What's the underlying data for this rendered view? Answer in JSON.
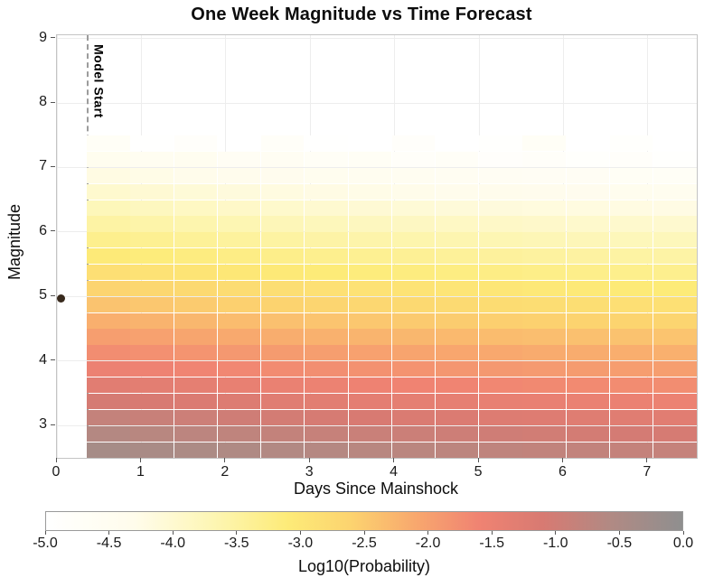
{
  "figure": {
    "title": "One Week Magnitude vs Time Forecast",
    "xlabel": "Days Since Mainshock",
    "ylabel": "Magnitude",
    "model_start_label": "Model Start",
    "colorbar_label": "Log10(Probability)"
  },
  "chart_data": {
    "type": "heatmap",
    "title": "One Week Magnitude vs Time Forecast",
    "xlabel": "Days Since Mainshock",
    "ylabel": "Magnitude",
    "x_range": [
      0,
      7.58
    ],
    "y_range": [
      2.5,
      9.05
    ],
    "x_ticks": [
      0,
      1,
      2,
      3,
      4,
      5,
      6,
      7
    ],
    "x_tick_labels": [
      "0",
      "1",
      "2",
      "3",
      "4",
      "5",
      "6",
      "7"
    ],
    "y_ticks": [
      3,
      4,
      5,
      6,
      7,
      8,
      9
    ],
    "y_tick_labels": [
      "3",
      "4",
      "5",
      "6",
      "7",
      "8",
      "9"
    ],
    "grid": true,
    "model_start_day": 0.35,
    "mainshock_point": {
      "day": 0.05,
      "magnitude": 4.97,
      "color": "#38291c"
    },
    "t_bins": {
      "start": 0.35,
      "end": 7.58,
      "count": 14
    },
    "mag_bins": {
      "start": 2.5,
      "step": 0.25,
      "count": 20
    },
    "col_day_centers": [
      0.61,
      1.12,
      1.64,
      2.16,
      2.67,
      3.19,
      3.71,
      4.23,
      4.74,
      5.26,
      5.78,
      6.29,
      6.81,
      7.32
    ],
    "row_magnitude_centers": [
      2.625,
      2.875,
      3.125,
      3.375,
      3.625,
      3.875,
      4.125,
      4.375,
      4.625,
      4.875,
      5.125,
      5.375,
      5.625,
      5.875,
      6.125,
      6.375,
      6.625,
      6.875,
      7.125,
      7.375
    ],
    "values_log10_probability": [
      [
        -0.38,
        -0.43,
        -0.48,
        -0.53,
        -0.58,
        -0.62,
        -0.66,
        -0.69,
        -0.72,
        -0.75,
        -0.78,
        -0.8,
        -0.82,
        -0.84
      ],
      [
        -0.61,
        -0.66,
        -0.71,
        -0.76,
        -0.81,
        -0.85,
        -0.89,
        -0.92,
        -0.95,
        -0.98,
        -1.01,
        -1.03,
        -1.05,
        -1.07
      ],
      [
        -0.83,
        -0.88,
        -0.93,
        -0.98,
        -1.03,
        -1.07,
        -1.11,
        -1.14,
        -1.17,
        -1.2,
        -1.23,
        -1.25,
        -1.27,
        -1.29
      ],
      [
        -1.06,
        -1.11,
        -1.16,
        -1.21,
        -1.26,
        -1.3,
        -1.34,
        -1.37,
        -1.4,
        -1.43,
        -1.46,
        -1.48,
        -1.5,
        -1.52
      ],
      [
        -1.28,
        -1.33,
        -1.38,
        -1.43,
        -1.48,
        -1.52,
        -1.56,
        -1.59,
        -1.62,
        -1.65,
        -1.68,
        -1.7,
        -1.72,
        -1.74
      ],
      [
        -1.51,
        -1.56,
        -1.61,
        -1.66,
        -1.71,
        -1.75,
        -1.79,
        -1.82,
        -1.85,
        -1.88,
        -1.91,
        -1.93,
        -1.95,
        -1.97
      ],
      [
        -1.73,
        -1.78,
        -1.83,
        -1.88,
        -1.93,
        -1.97,
        -2.01,
        -2.04,
        -2.07,
        -2.1,
        -2.13,
        -2.15,
        -2.17,
        -2.19
      ],
      [
        -1.96,
        -2.01,
        -2.06,
        -2.11,
        -2.16,
        -2.2,
        -2.24,
        -2.27,
        -2.3,
        -2.33,
        -2.36,
        -2.38,
        -2.4,
        -2.42
      ],
      [
        -2.18,
        -2.23,
        -2.28,
        -2.33,
        -2.38,
        -2.42,
        -2.46,
        -2.49,
        -2.52,
        -2.55,
        -2.58,
        -2.6,
        -2.62,
        -2.64
      ],
      [
        -2.41,
        -2.46,
        -2.51,
        -2.56,
        -2.61,
        -2.65,
        -2.69,
        -2.72,
        -2.75,
        -2.78,
        -2.81,
        -2.83,
        -2.85,
        -2.87
      ],
      [
        -2.63,
        -2.68,
        -2.73,
        -2.78,
        -2.83,
        -2.87,
        -2.91,
        -2.94,
        -2.97,
        -3.0,
        -3.03,
        -3.05,
        -3.07,
        -3.09
      ],
      [
        -2.86,
        -2.91,
        -2.96,
        -3.01,
        -3.06,
        -3.1,
        -3.14,
        -3.17,
        -3.2,
        -3.23,
        -3.26,
        -3.28,
        -3.3,
        -3.32
      ],
      [
        -3.08,
        -3.13,
        -3.18,
        -3.23,
        -3.28,
        -3.32,
        -3.36,
        -3.39,
        -3.42,
        -3.45,
        -3.48,
        -3.5,
        -3.52,
        -3.54
      ],
      [
        -3.31,
        -3.36,
        -3.41,
        -3.46,
        -3.51,
        -3.55,
        -3.59,
        -3.62,
        -3.65,
        -3.68,
        -3.71,
        -3.73,
        -3.75,
        -3.77
      ],
      [
        -3.53,
        -3.58,
        -3.63,
        -3.68,
        -3.73,
        -3.77,
        -3.81,
        -3.84,
        -3.87,
        -3.9,
        -3.93,
        -3.95,
        -3.97,
        -3.99
      ],
      [
        -3.76,
        -3.81,
        -3.86,
        -3.91,
        -3.96,
        -4.0,
        -4.04,
        -4.07,
        -4.1,
        -4.13,
        -4.16,
        -4.18,
        -4.2,
        -4.22
      ],
      [
        -3.98,
        -4.03,
        -4.08,
        -4.13,
        -4.18,
        -4.22,
        -4.26,
        -4.29,
        -4.32,
        -4.35,
        -4.38,
        -4.4,
        -4.42,
        -4.44
      ],
      [
        -4.21,
        -4.26,
        -4.31,
        -4.36,
        -4.41,
        -4.45,
        -4.49,
        -4.52,
        -4.55,
        -4.58,
        -4.61,
        -4.63,
        -4.65,
        -4.67
      ],
      [
        -4.43,
        -4.52,
        -4.48,
        -4.62,
        -4.58,
        -4.7,
        -4.66,
        -4.78,
        -4.72,
        -4.85,
        -4.8,
        -4.9,
        -4.84,
        -4.92
      ],
      [
        -4.7,
        -4.95,
        -4.82,
        -5.0,
        -4.76,
        -4.97,
        -5.0,
        -4.83,
        -5.0,
        -4.93,
        -4.68,
        -5.0,
        -4.9,
        -5.0
      ]
    ],
    "colormap_stops": [
      [
        -5.0,
        "#ffffff"
      ],
      [
        -4.3,
        "#fffceb"
      ],
      [
        -3.7,
        "#fdf6b5"
      ],
      [
        -3.1,
        "#fdeb78"
      ],
      [
        -2.6,
        "#fcd36f"
      ],
      [
        -2.1,
        "#f8a86e"
      ],
      [
        -1.6,
        "#f08372"
      ],
      [
        -1.1,
        "#d87a72"
      ],
      [
        -0.55,
        "#b08a84"
      ],
      [
        0.0,
        "#8f8f8f"
      ]
    ],
    "colorbar_ticks": [
      -5.0,
      -4.5,
      -4.0,
      -3.5,
      -3.0,
      -2.5,
      -2.0,
      -1.5,
      -1.0,
      -0.5,
      0.0
    ],
    "colorbar_tick_labels": [
      "-5.0",
      "-4.5",
      "-4.0",
      "-3.5",
      "-3.0",
      "-2.5",
      "-2.0",
      "-1.5",
      "-1.0",
      "-0.5",
      "0.0"
    ],
    "legend_position": "bottom",
    "model_start_line_color": "#9c9c9c"
  }
}
